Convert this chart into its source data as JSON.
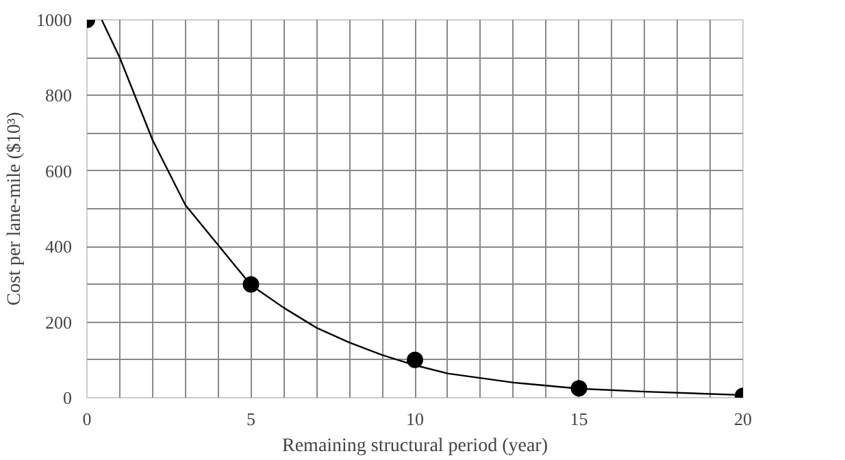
{
  "chart_data": {
    "type": "scatter",
    "xlabel": "Remaining structural period (year)",
    "ylabel": "Cost per lane-mile ($10³)",
    "xlim": [
      0,
      20
    ],
    "ylim": [
      0,
      1000
    ],
    "xticks": [
      0,
      {
        "value": 1,
        "label": null
      },
      {
        "value": 2,
        "label": null
      },
      {
        "value": 3,
        "label": null
      },
      {
        "value": 4,
        "label": null
      },
      5,
      {
        "value": 6,
        "label": null
      },
      {
        "value": 7,
        "label": null
      },
      {
        "value": 8,
        "label": null
      },
      {
        "value": 9,
        "label": null
      },
      10,
      {
        "value": 11,
        "label": null
      },
      {
        "value": 12,
        "label": null
      },
      {
        "value": 13,
        "label": null
      },
      {
        "value": 14,
        "label": null
      },
      15,
      {
        "value": 16,
        "label": null
      },
      {
        "value": 17,
        "label": null
      },
      {
        "value": 18,
        "label": null
      },
      {
        "value": 19,
        "label": null
      },
      20
    ],
    "yticks": [
      0,
      {
        "value": 100,
        "label": null
      },
      200,
      {
        "value": 300,
        "label": null
      },
      400,
      {
        "value": 500,
        "label": null
      },
      600,
      {
        "value": 700,
        "label": null
      },
      800,
      {
        "value": 900,
        "label": null
      },
      1000
    ],
    "grid": true,
    "series": [
      {
        "color": "#000000",
        "marker": "circle",
        "x": [
          0,
          5,
          10,
          15,
          20
        ],
        "values": [
          1000,
          300,
          100,
          25,
          5
        ]
      },
      {
        "type": "line",
        "color": "#000000",
        "line_style": "solid",
        "x": [
          0.45,
          1,
          2,
          3,
          4,
          5,
          6,
          7,
          8,
          9,
          10,
          11,
          13,
          15,
          17,
          20
        ],
        "values": [
          1000,
          900,
          682,
          510,
          404,
          298,
          238,
          185,
          146,
          113,
          86,
          64,
          40,
          24,
          16,
          7
        ]
      }
    ]
  }
}
